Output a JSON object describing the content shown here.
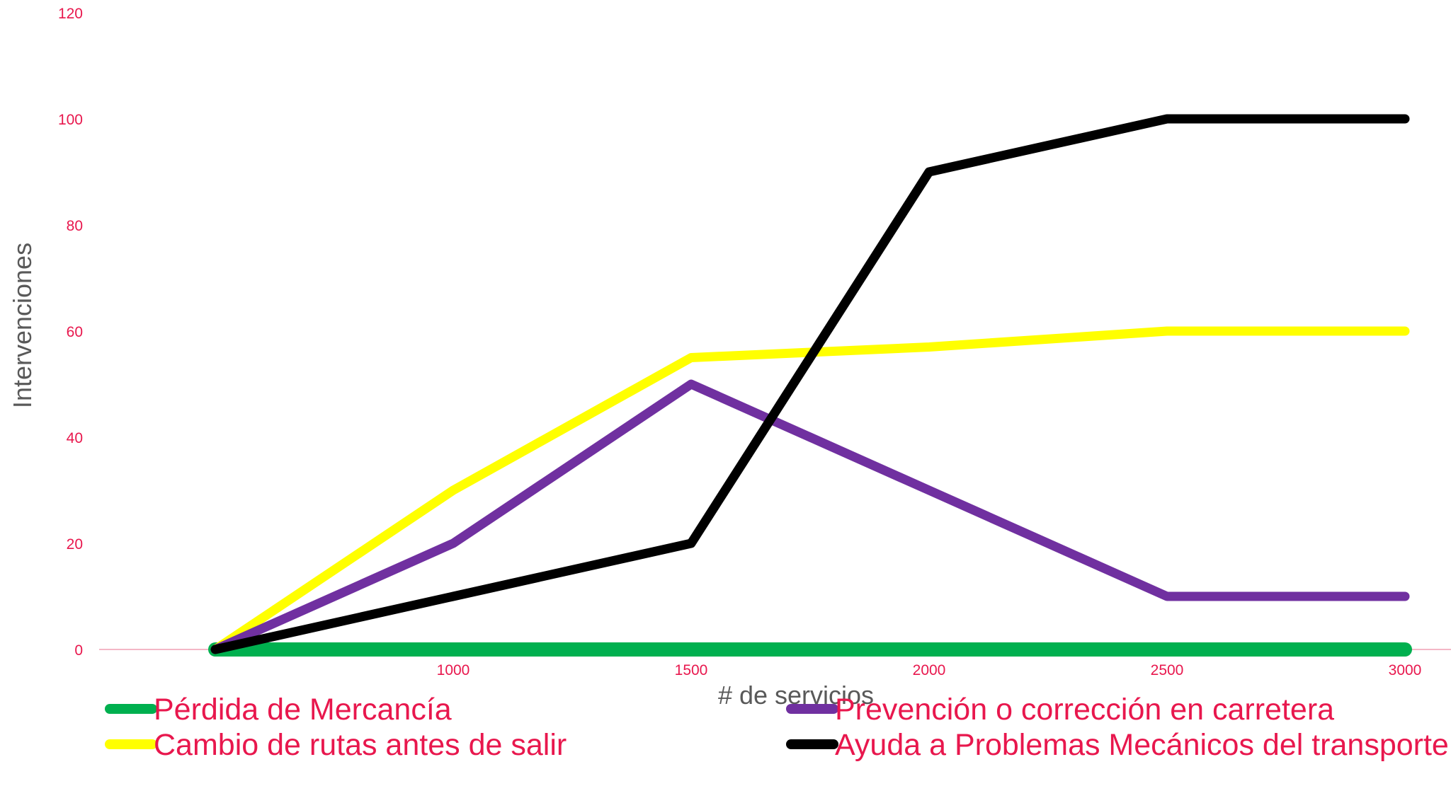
{
  "chart_data": {
    "type": "line",
    "title": "",
    "xlabel": "# de servicios",
    "ylabel": "Intervenciones",
    "x": [
      500,
      1000,
      1500,
      2000,
      2500,
      3000
    ],
    "x_tick_labels": [
      "1000",
      "1500",
      "2000",
      "2500",
      "3000"
    ],
    "x_ticks": [
      1000,
      1500,
      2000,
      2500,
      3000
    ],
    "y_ticks": [
      0,
      20,
      40,
      60,
      80,
      100,
      120
    ],
    "xlim": [
      0,
      3000
    ],
    "ylim": [
      0,
      120
    ],
    "grid": false,
    "legend_position": "bottom",
    "colors": {
      "tick_label": "#e8174d",
      "legend_label": "#e8174d",
      "axis_title": "#595959",
      "baseline": "#f4b7c6"
    },
    "series": [
      {
        "name": "Pérdida de Mercancía",
        "color": "#00b04f",
        "values": [
          0,
          0,
          0,
          0,
          0,
          0
        ]
      },
      {
        "name": "Cambio de rutas antes de salir",
        "color": "#ffff00",
        "values": [
          0,
          30,
          55,
          57,
          60,
          60
        ]
      },
      {
        "name": "Prevención o corrección en carretera",
        "color": "#7030a0",
        "values": [
          0,
          20,
          50,
          30,
          10,
          10
        ]
      },
      {
        "name": "Ayuda a Problemas Mecánicos del transporte",
        "color": "#000000",
        "values": [
          0,
          10,
          20,
          90,
          100,
          100
        ]
      }
    ]
  }
}
